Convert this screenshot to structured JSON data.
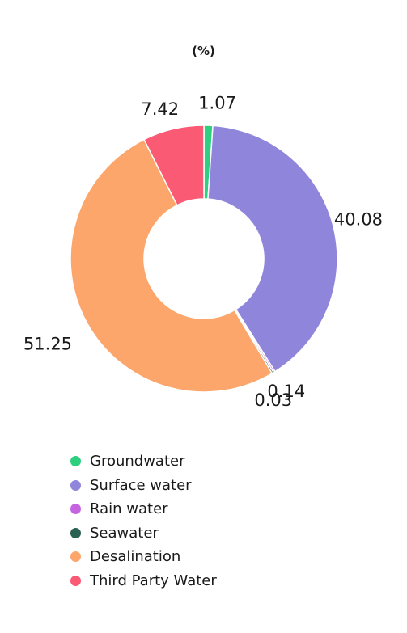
{
  "chart_data": {
    "type": "pie",
    "title": "(%)",
    "categories": [
      "Groundwater",
      "Surface water",
      "Rain water",
      "Seawater",
      "Desalination",
      "Third Party Water"
    ],
    "values": [
      1.07,
      40.08,
      0.14,
      0.03,
      51.25,
      7.42
    ],
    "data_labels": [
      "1.07",
      "40.08",
      "0.14",
      "0.03",
      "51.25",
      "7.42"
    ],
    "colors": [
      "#2ecf7e",
      "#8f86db",
      "#c663e0",
      "#2b6150",
      "#fca66c",
      "#fb5a75"
    ],
    "legend_position": "bottom",
    "donut": true
  }
}
